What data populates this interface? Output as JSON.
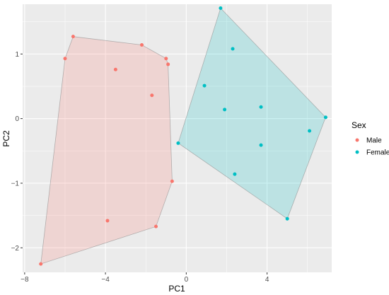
{
  "chart_data": {
    "type": "scatter",
    "xlabel": "PC1",
    "ylabel": "PC2",
    "xlim": [
      -8.1,
      7.2
    ],
    "ylim": [
      -2.38,
      1.77
    ],
    "x_ticks": [
      -8,
      -4,
      0,
      4
    ],
    "x_tick_labels": [
      "−8",
      "−4",
      "0",
      "4"
    ],
    "y_ticks": [
      -2,
      -1,
      0,
      1
    ],
    "y_tick_labels": [
      "−2",
      "−1",
      "0",
      "1"
    ],
    "background": "#ebebeb",
    "grid": true,
    "legend": {
      "title": "Sex",
      "placement": "right"
    },
    "series": [
      {
        "name": "Male",
        "color": "#f8766d",
        "fill": "#f8766d",
        "points": [
          [
            -5.6,
            1.27
          ],
          [
            -6.0,
            0.93
          ],
          [
            -2.2,
            1.14
          ],
          [
            -3.5,
            0.76
          ],
          [
            -1.0,
            0.93
          ],
          [
            -0.9,
            0.84
          ],
          [
            -1.7,
            0.36
          ],
          [
            -0.7,
            -0.97
          ],
          [
            -3.9,
            -1.58
          ],
          [
            -1.5,
            -1.67
          ],
          [
            -7.2,
            -2.25
          ]
        ],
        "hull": [
          [
            -5.6,
            1.27
          ],
          [
            -2.2,
            1.14
          ],
          [
            -1.0,
            0.93
          ],
          [
            -0.9,
            0.84
          ],
          [
            -0.7,
            -0.97
          ],
          [
            -1.5,
            -1.67
          ],
          [
            -7.2,
            -2.25
          ],
          [
            -6.0,
            0.93
          ]
        ]
      },
      {
        "name": "Female",
        "color": "#00bfc4",
        "fill": "#00bfc4",
        "points": [
          [
            1.7,
            1.71
          ],
          [
            2.3,
            1.08
          ],
          [
            0.9,
            0.51
          ],
          [
            1.9,
            0.14
          ],
          [
            3.7,
            0.18
          ],
          [
            6.9,
            0.02
          ],
          [
            6.1,
            -0.19
          ],
          [
            3.7,
            -0.41
          ],
          [
            -0.4,
            -0.38
          ],
          [
            2.4,
            -0.86
          ],
          [
            5.0,
            -1.55
          ]
        ],
        "hull": [
          [
            1.7,
            1.71
          ],
          [
            6.9,
            0.02
          ],
          [
            5.0,
            -1.55
          ],
          [
            -0.4,
            -0.38
          ]
        ]
      }
    ]
  }
}
